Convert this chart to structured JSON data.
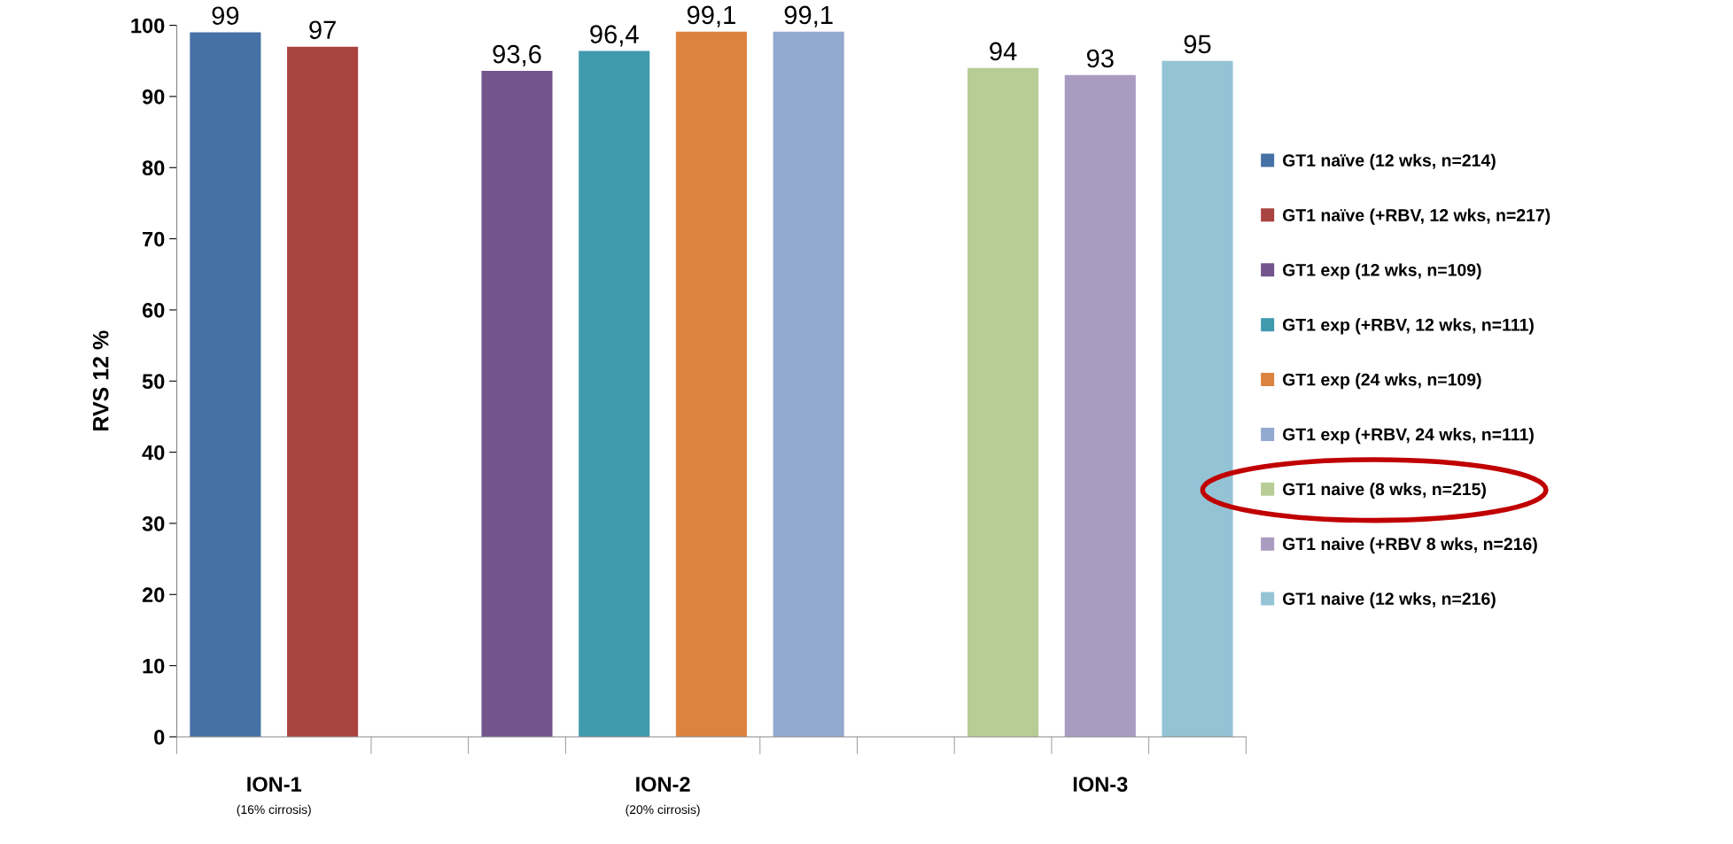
{
  "chart_data": {
    "type": "bar",
    "ylabel": "RVS 12 %",
    "categories": [
      "ION-1\n(16% cirrosis)",
      "ION-2\n(20% cirrosis)",
      "ION-3"
    ],
    "series": [
      {
        "name": "GT1 naïve (12 wks, n=214)",
        "color": "#4571a5",
        "values": [
          99,
          null,
          null
        ],
        "value_labels": [
          "99",
          null,
          null
        ]
      },
      {
        "name": "GT1 naïve (+RBV, 12 wks, n=217)",
        "color": "#aa4440",
        "values": [
          97,
          null,
          null
        ],
        "value_labels": [
          "97",
          null,
          null
        ]
      },
      {
        "name": "GT1 exp (12 wks, n=109)",
        "color": "#73558b",
        "values": [
          null,
          93.6,
          null
        ],
        "value_labels": [
          null,
          "93,6",
          null
        ]
      },
      {
        "name": "GT1 exp (+RBV, 12 wks, n=111)",
        "color": "#409aae",
        "values": [
          null,
          96.4,
          null
        ],
        "value_labels": [
          null,
          "96,4",
          null
        ]
      },
      {
        "name": "GT1 exp (24 wks, n=109)",
        "color": "#db833f",
        "values": [
          null,
          99.1,
          null
        ],
        "value_labels": [
          null,
          "99,1",
          null
        ]
      },
      {
        "name": "GT1 exp (+RBV, 24 wks, n=111)",
        "color": "#93a9cf",
        "values": [
          null,
          99.1,
          null
        ],
        "value_labels": [
          null,
          "99,1",
          null
        ]
      },
      {
        "name": "GT1 naive (8 wks, n=215)",
        "color": "#b8cd96",
        "values": [
          null,
          null,
          94
        ],
        "value_labels": [
          null,
          null,
          "94"
        ]
      },
      {
        "name": "GT1 naive (+RBV 8 wks, n=216)",
        "color": "#aa9bc1",
        "values": [
          null,
          null,
          93
        ],
        "value_labels": [
          null,
          null,
          "93"
        ]
      },
      {
        "name": "GT1 naive (12 wks, n=216)",
        "color": "#94c3d5",
        "values": [
          null,
          null,
          95
        ],
        "value_labels": [
          null,
          null,
          "95"
        ]
      }
    ],
    "ylim": [
      0,
      100
    ],
    "yticks": [
      0,
      10,
      20,
      30,
      40,
      50,
      60,
      70,
      80,
      90,
      100
    ],
    "grid": false,
    "legend": "right"
  }
}
